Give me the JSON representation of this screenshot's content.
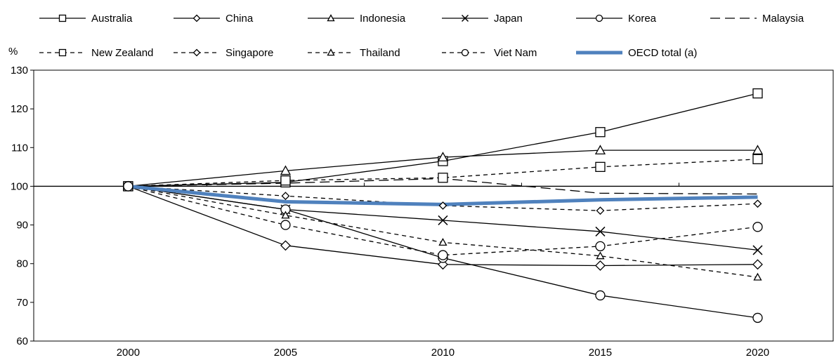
{
  "chart_data": {
    "type": "line",
    "ylabel": "%",
    "x": [
      2000,
      2005,
      2010,
      2015,
      2020
    ],
    "x_ticks": [
      "2000",
      "2005",
      "2010",
      "2015",
      "2020"
    ],
    "y_ticks": [
      "60",
      "70",
      "80",
      "90",
      "100",
      "110",
      "120",
      "130"
    ],
    "ylim": [
      60,
      130
    ],
    "xlim": [
      1997,
      2022.4
    ],
    "reference_line": 100,
    "legend_position": "top",
    "grid": false,
    "series": [
      {
        "name": "Australia",
        "values": [
          100,
          101,
          106.5,
          114,
          124
        ],
        "style": "solid",
        "marker": "square",
        "color": "#000000"
      },
      {
        "name": "China",
        "values": [
          100,
          84.7,
          79.8,
          79.5,
          79.8
        ],
        "style": "solid",
        "marker": "diamond",
        "color": "#000000"
      },
      {
        "name": "Indonesia",
        "values": [
          100,
          104,
          107.5,
          109.3,
          109.3
        ],
        "style": "solid",
        "marker": "triangle",
        "color": "#000000"
      },
      {
        "name": "Japan",
        "values": [
          100,
          94,
          91.2,
          88.3,
          83.5
        ],
        "style": "solid",
        "marker": "x",
        "color": "#000000"
      },
      {
        "name": "Korea",
        "values": [
          100,
          94,
          81.5,
          71.8,
          66
        ],
        "style": "solid",
        "marker": "circle",
        "color": "#000000"
      },
      {
        "name": "Malaysia",
        "values": [
          100,
          100.8,
          102,
          98.2,
          98
        ],
        "style": "longdash",
        "marker": "none",
        "color": "#000000"
      },
      {
        "name": "New Zealand",
        "values": [
          100,
          101.5,
          102.2,
          105,
          107
        ],
        "style": "dash",
        "marker": "square",
        "color": "#000000"
      },
      {
        "name": "Singapore",
        "values": [
          100,
          97.5,
          95,
          93.7,
          95.5
        ],
        "style": "dash",
        "marker": "diamond",
        "color": "#000000"
      },
      {
        "name": "Thailand",
        "values": [
          100,
          92.5,
          85.5,
          82,
          76.5
        ],
        "style": "dash",
        "marker": "triangle",
        "color": "#000000"
      },
      {
        "name": "Viet Nam",
        "values": [
          100,
          90,
          82.2,
          84.5,
          89.5
        ],
        "style": "dash",
        "marker": "circle",
        "color": "#000000"
      },
      {
        "name": "OECD total (a)",
        "values": [
          100,
          96,
          95.3,
          96.5,
          97.2
        ],
        "style": "thick",
        "marker": "none",
        "color": "#4f81bd"
      }
    ]
  }
}
